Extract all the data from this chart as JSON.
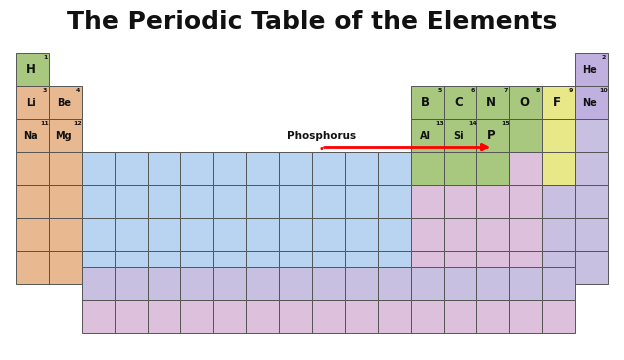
{
  "title": "The Periodic Table of the Elements",
  "title_fontsize": 18,
  "background_color": "#ffffff",
  "colors": {
    "green": "#a8c880",
    "peach": "#e8b890",
    "blue": "#b8d4f0",
    "purple": "#c0b0e0",
    "pink": "#dcc0dc",
    "yellow": "#e8e888",
    "lavender": "#c8c0e0",
    "white": "#ffffff"
  },
  "elements": [
    {
      "symbol": "H",
      "num": "1",
      "col": 0,
      "row": 0
    },
    {
      "symbol": "He",
      "num": "2",
      "col": 17,
      "row": 0
    },
    {
      "symbol": "Li",
      "num": "3",
      "col": 0,
      "row": 1
    },
    {
      "symbol": "Be",
      "num": "4",
      "col": 1,
      "row": 1
    },
    {
      "symbol": "B",
      "num": "5",
      "col": 12,
      "row": 1
    },
    {
      "symbol": "C",
      "num": "6",
      "col": 13,
      "row": 1
    },
    {
      "symbol": "N",
      "num": "7",
      "col": 14,
      "row": 1
    },
    {
      "symbol": "O",
      "num": "8",
      "col": 15,
      "row": 1
    },
    {
      "symbol": "F",
      "num": "9",
      "col": 16,
      "row": 1
    },
    {
      "symbol": "Ne",
      "num": "10",
      "col": 17,
      "row": 1
    },
    {
      "symbol": "Na",
      "num": "11",
      "col": 0,
      "row": 2
    },
    {
      "symbol": "Mg",
      "num": "12",
      "col": 1,
      "row": 2
    },
    {
      "symbol": "Al",
      "num": "13",
      "col": 12,
      "row": 2
    },
    {
      "symbol": "Si",
      "num": "14",
      "col": 13,
      "row": 2
    },
    {
      "symbol": "P",
      "num": "15",
      "col": 14,
      "row": 2
    }
  ],
  "phosphorus_label": "Phosphorus",
  "phosphorus_label_col": 8.5,
  "phosphorus_label_row": 2.5
}
